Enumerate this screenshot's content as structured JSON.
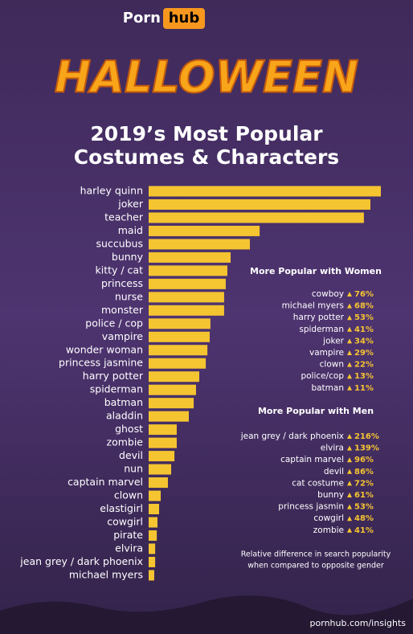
{
  "header": {
    "brand": "Porn",
    "brand_box": "hub",
    "banner": "HALLOWEEN"
  },
  "chart_data": {
    "type": "bar",
    "orientation": "horizontal",
    "title": [
      "2019’s Most Popular",
      "Costumes & Characters"
    ],
    "categories": [
      "harley quinn",
      "joker",
      "teacher",
      "maid",
      "succubus",
      "bunny",
      "kitty / cat",
      "princess",
      "nurse",
      "monster",
      "police / cop",
      "vampire",
      "wonder woman",
      "princess jasmine",
      "harry potter",
      "spiderman",
      "batman",
      "aladdin",
      "ghost",
      "zombie",
      "devil",
      "nun",
      "captain marvel",
      "clown",
      "elastigirl",
      "cowgirl",
      "pirate",
      "elvira",
      "jean grey / dark phoenix",
      "michael myers"
    ],
    "values": [
      100,
      95.5,
      92.7,
      47.8,
      43.6,
      35.3,
      33.9,
      33.2,
      32.5,
      32.5,
      26.6,
      26.3,
      25.3,
      24.6,
      21.8,
      20.4,
      19.4,
      17.3,
      12.1,
      12.1,
      11.1,
      9.7,
      8.3,
      5.2,
      4.5,
      3.8,
      3.5,
      2.8,
      2.8,
      2.4
    ],
    "color": "#f5c431",
    "comparisons": [
      {
        "title": "More Popular with Women",
        "categories": [
          "cowboy",
          "michael myers",
          "harry potter",
          "spiderman",
          "joker",
          "vampire",
          "clown",
          "police/cop",
          "batman"
        ],
        "values": [
          76,
          68,
          53,
          41,
          34,
          29,
          22,
          13,
          11
        ],
        "value_labels": [
          "76%",
          "68%",
          "53%",
          "41%",
          "34%",
          "29%",
          "22%",
          "13%",
          "11%"
        ]
      },
      {
        "title": "More Popular with Men",
        "categories": [
          "jean grey / dark phoenix",
          "elvira",
          "captain marvel",
          "devil",
          "cat costume",
          "bunny",
          "princess jasmin",
          "cowgirl",
          "zombie"
        ],
        "values": [
          216,
          139,
          96,
          86,
          72,
          61,
          53,
          48,
          41
        ],
        "value_labels": [
          "216%",
          "139%",
          "96%",
          "86%",
          "72%",
          "61%",
          "53%",
          "48%",
          "41%"
        ]
      }
    ],
    "note": [
      "Relative difference in search popularity",
      "when compared to opposite gender"
    ]
  },
  "footer": "pornhub.com/insights"
}
